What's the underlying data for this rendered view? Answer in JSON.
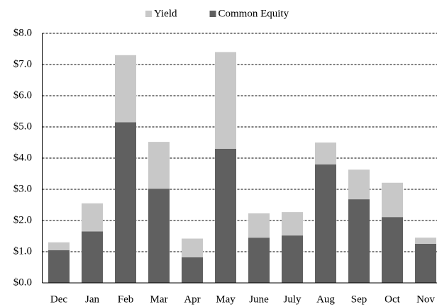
{
  "chart_data": {
    "type": "stacked_bar",
    "categories": [
      "Dec",
      "Jan",
      "Feb",
      "Mar",
      "Apr",
      "May",
      "June",
      "July",
      "Aug",
      "Sep",
      "Oct",
      "Nov"
    ],
    "series": [
      {
        "name": "Common Equity",
        "color": "#606060",
        "values": [
          1.05,
          1.65,
          5.15,
          3.02,
          0.82,
          4.3,
          1.45,
          1.52,
          3.8,
          2.68,
          2.11,
          1.25
        ]
      },
      {
        "name": "Yield",
        "color": "#c8c8c8",
        "values": [
          0.25,
          0.9,
          2.15,
          1.5,
          0.6,
          3.1,
          0.78,
          0.75,
          0.7,
          0.95,
          1.1,
          0.2
        ]
      }
    ],
    "legend_order": [
      1,
      0
    ],
    "ylim": [
      0,
      8
    ],
    "yticks": [
      {
        "value": 0,
        "label": "$0.0"
      },
      {
        "value": 1,
        "label": "$1.0"
      },
      {
        "value": 2,
        "label": "$2.0"
      },
      {
        "value": 3,
        "label": "$3.0"
      },
      {
        "value": 4,
        "label": "$4.0"
      },
      {
        "value": 5,
        "label": "$5.0"
      },
      {
        "value": 6,
        "label": "$6.0"
      },
      {
        "value": 7,
        "label": "$7.0"
      },
      {
        "value": 8,
        "label": "$8.0"
      }
    ],
    "grid": true,
    "legend": "top"
  }
}
